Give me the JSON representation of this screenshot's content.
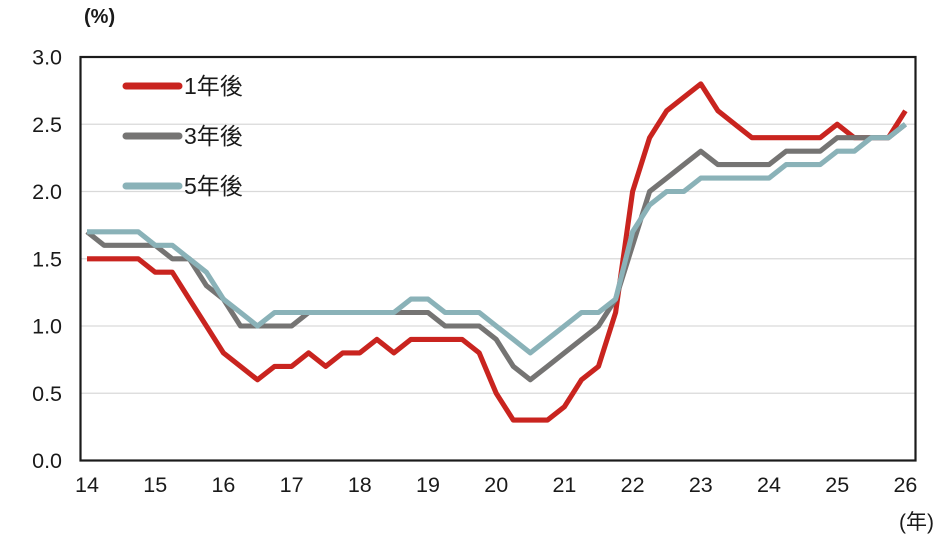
{
  "chart_data": {
    "type": "line",
    "title": "",
    "y_axis": {
      "unit_label": "(%)",
      "min": 0.0,
      "max": 3.0,
      "tick_step": 0.5,
      "tick_labels": [
        "0.0",
        "0.5",
        "1.0",
        "1.5",
        "2.0",
        "2.5",
        "3.0"
      ]
    },
    "x_axis": {
      "unit_label": "(年)",
      "tick_labels": [
        "14",
        "15",
        "16",
        "17",
        "18",
        "19",
        "20",
        "21",
        "22",
        "23",
        "24",
        "25",
        "26"
      ],
      "points_per_year": 4,
      "note": "quarterly data from year 14 Q1 to year 26 Q1"
    },
    "grid": true,
    "legend_position": "top-left",
    "series": [
      {
        "name": "1年後",
        "color": "#c9241f",
        "values": [
          1.5,
          1.5,
          1.5,
          1.5,
          1.4,
          1.4,
          1.2,
          1.0,
          0.8,
          0.7,
          0.6,
          0.7,
          0.7,
          0.8,
          0.7,
          0.8,
          0.8,
          0.9,
          0.8,
          0.9,
          0.9,
          0.9,
          0.9,
          0.8,
          0.5,
          0.3,
          0.3,
          0.3,
          0.4,
          0.6,
          0.7,
          1.1,
          2.0,
          2.4,
          2.6,
          2.7,
          2.8,
          2.6,
          2.5,
          2.4,
          2.4,
          2.4,
          2.4,
          2.4,
          2.5,
          2.4,
          2.4,
          2.4,
          2.6
        ]
      },
      {
        "name": "3年後",
        "color": "#757473",
        "values": [
          1.7,
          1.6,
          1.6,
          1.6,
          1.6,
          1.5,
          1.5,
          1.3,
          1.2,
          1.0,
          1.0,
          1.0,
          1.0,
          1.1,
          1.1,
          1.1,
          1.1,
          1.1,
          1.1,
          1.1,
          1.1,
          1.0,
          1.0,
          1.0,
          0.9,
          0.7,
          0.6,
          0.7,
          0.8,
          0.9,
          1.0,
          1.2,
          1.6,
          2.0,
          2.1,
          2.2,
          2.3,
          2.2,
          2.2,
          2.2,
          2.2,
          2.3,
          2.3,
          2.3,
          2.4,
          2.4,
          2.4,
          2.4,
          2.5
        ]
      },
      {
        "name": "5年後",
        "color": "#8ab2b8",
        "values": [
          1.7,
          1.7,
          1.7,
          1.7,
          1.6,
          1.6,
          1.5,
          1.4,
          1.2,
          1.1,
          1.0,
          1.1,
          1.1,
          1.1,
          1.1,
          1.1,
          1.1,
          1.1,
          1.1,
          1.2,
          1.2,
          1.1,
          1.1,
          1.1,
          1.0,
          0.9,
          0.8,
          0.9,
          1.0,
          1.1,
          1.1,
          1.2,
          1.7,
          1.9,
          2.0,
          2.0,
          2.1,
          2.1,
          2.1,
          2.1,
          2.1,
          2.2,
          2.2,
          2.2,
          2.3,
          2.3,
          2.4,
          2.4,
          2.5
        ]
      }
    ],
    "colors": {
      "grid_line": "#d9d9d9",
      "axis_border": "#1b1b1b",
      "text": "#1a1a1a",
      "background": "#ffffff"
    }
  }
}
